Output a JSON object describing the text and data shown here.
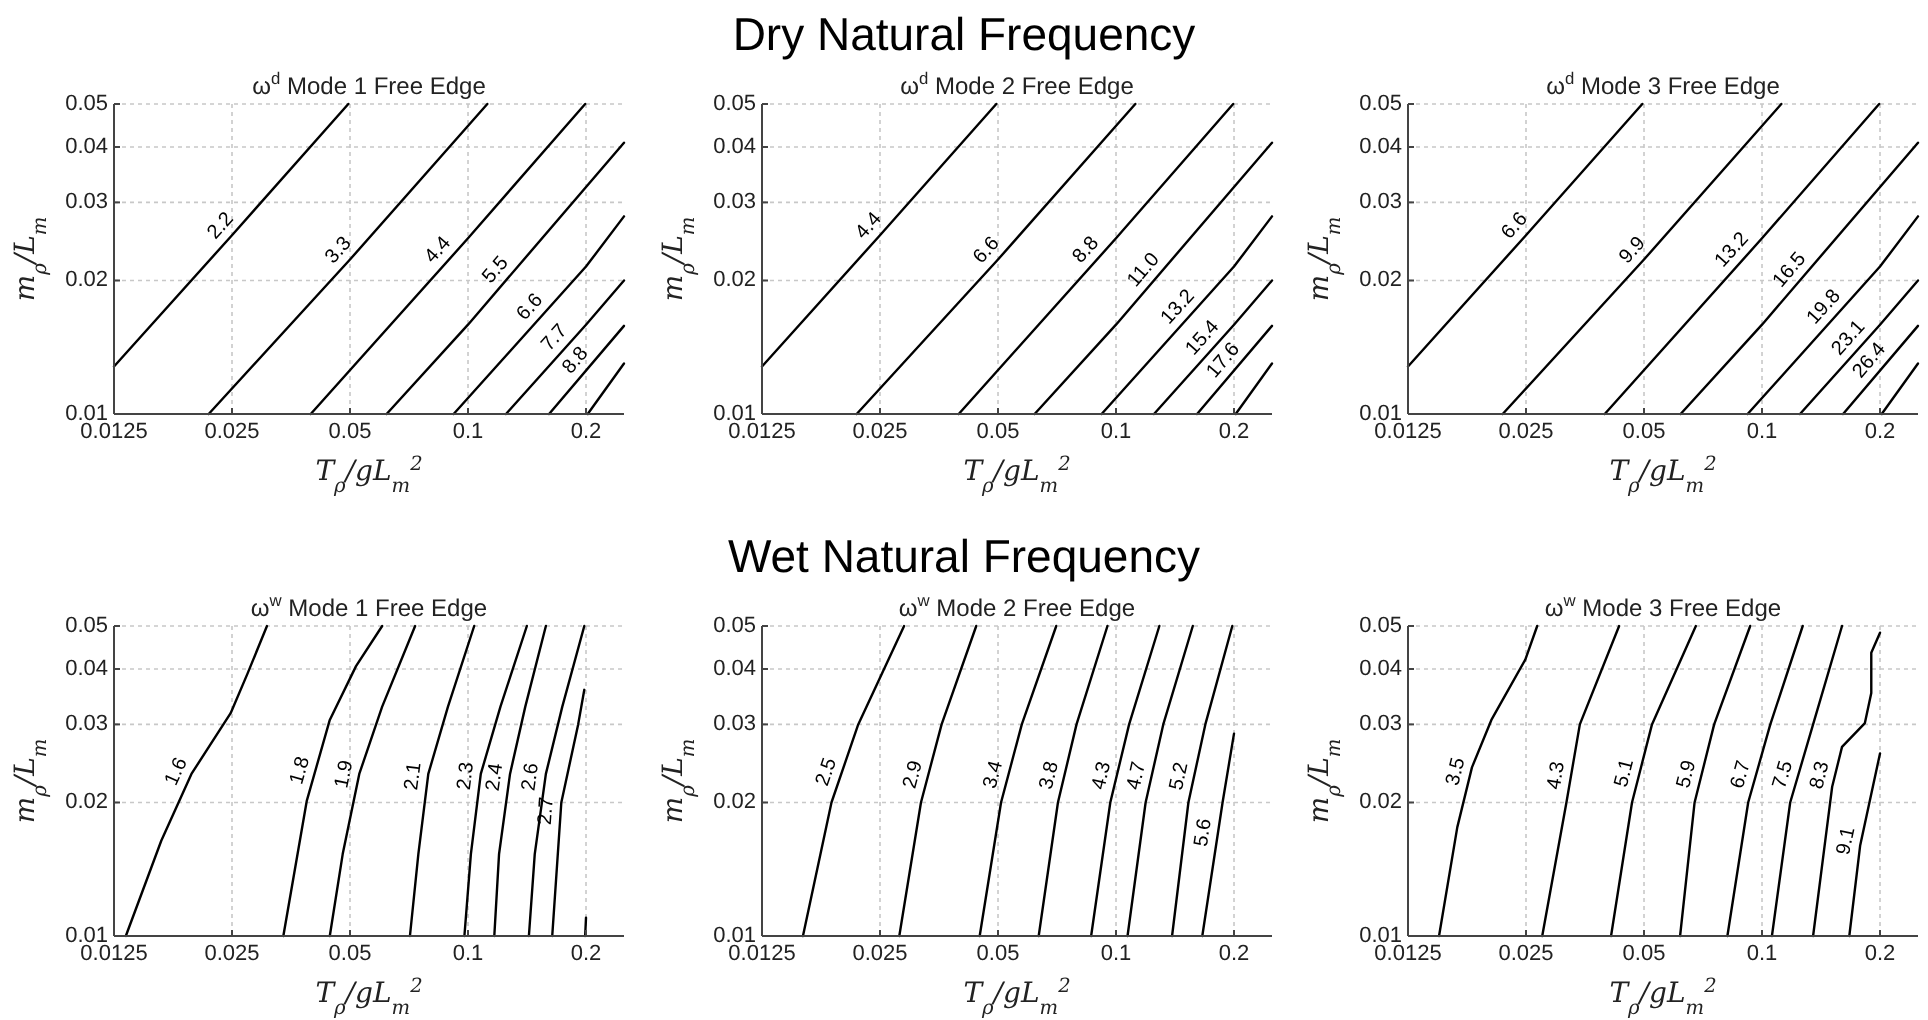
{
  "chart_data": [
    {
      "type": "line",
      "title": "ω$^{d}$ Mode 1 Free Edge",
      "annotations": [
        "Dry Natural Frequency"
      ],
      "xlabel": "T$_{ρ}$/gL$_{m}$$^{2}$",
      "ylabel": "m$_{ρ}$/L$_{m}$",
      "log": "xy",
      "grid": true,
      "xlim": [
        0.0125,
        0.25
      ],
      "ylim": [
        0.01,
        0.05
      ],
      "xticks": [
        0.0125,
        0.025,
        0.05,
        0.1,
        0.2
      ],
      "yticks": [
        0.01,
        0.02,
        0.03,
        0.04,
        0.05
      ],
      "series": [
        {
          "name": "2.2",
          "color": "#000000",
          "x": [
            0.0125,
            0.025,
            0.0495
          ],
          "values": [
            0.0128,
            0.0253,
            0.05
          ]
        },
        {
          "name": "3.3",
          "color": "#000000",
          "x": [
            0.0218,
            0.05,
            0.112
          ],
          "values": [
            0.01,
            0.0223,
            0.05
          ]
        },
        {
          "name": "4.4",
          "color": "#000000",
          "x": [
            0.0397,
            0.1,
            0.199
          ],
          "values": [
            0.01,
            0.0249,
            0.05
          ]
        },
        {
          "name": "5.5",
          "color": "#000000",
          "x": [
            0.062,
            0.1,
            0.25
          ],
          "values": [
            0.01,
            0.0159,
            0.0409
          ]
        },
        {
          "name": "6.6",
          "color": "#000000",
          "x": [
            0.0919,
            0.2,
            0.25
          ],
          "values": [
            0.01,
            0.0215,
            0.0279
          ]
        },
        {
          "name": "7.7",
          "color": "#000000",
          "x": [
            0.125,
            0.2,
            0.25
          ],
          "values": [
            0.01,
            0.0159,
            0.02
          ]
        },
        {
          "name": "8.8",
          "color": "#000000",
          "x": [
            0.161,
            0.25
          ],
          "values": [
            0.01,
            0.0158
          ]
        },
        {
          "color": "#000000",
          "x": [
            0.202,
            0.25
          ],
          "values": [
            0.01,
            0.013
          ]
        }
      ]
    },
    {
      "type": "line",
      "title": "ω$^{d}$ Mode 2 Free Edge",
      "xlabel": "T$_{ρ}$/gL$_{m}$$^{2}$",
      "ylabel": "m$_{ρ}$/L$_{m}$",
      "log": "xy",
      "grid": true,
      "xlim": [
        0.0125,
        0.25
      ],
      "ylim": [
        0.01,
        0.05
      ],
      "xticks": [
        0.0125,
        0.025,
        0.05,
        0.1,
        0.2
      ],
      "yticks": [
        0.01,
        0.02,
        0.03,
        0.04,
        0.05
      ],
      "series": [
        {
          "name": "4.4",
          "color": "#000000",
          "x": [
            0.0125,
            0.025,
            0.0495
          ],
          "values": [
            0.0128,
            0.0253,
            0.05
          ]
        },
        {
          "name": "6.6",
          "color": "#000000",
          "x": [
            0.0218,
            0.05,
            0.112
          ],
          "values": [
            0.01,
            0.0223,
            0.05
          ]
        },
        {
          "name": "8.8",
          "color": "#000000",
          "x": [
            0.0397,
            0.1,
            0.199
          ],
          "values": [
            0.01,
            0.0249,
            0.05
          ]
        },
        {
          "name": "11.0",
          "color": "#000000",
          "x": [
            0.062,
            0.1,
            0.25
          ],
          "values": [
            0.01,
            0.0159,
            0.0409
          ]
        },
        {
          "name": "13.2",
          "color": "#000000",
          "x": [
            0.0919,
            0.2,
            0.25
          ],
          "values": [
            0.01,
            0.0215,
            0.0279
          ]
        },
        {
          "name": "15.4",
          "color": "#000000",
          "x": [
            0.125,
            0.2,
            0.25
          ],
          "values": [
            0.01,
            0.0159,
            0.02
          ]
        },
        {
          "name": "17.6",
          "color": "#000000",
          "x": [
            0.161,
            0.25
          ],
          "values": [
            0.01,
            0.0158
          ]
        },
        {
          "color": "#000000",
          "x": [
            0.202,
            0.25
          ],
          "values": [
            0.01,
            0.013
          ]
        }
      ]
    },
    {
      "type": "line",
      "title": "ω$^{d}$ Mode 3 Free Edge",
      "xlabel": "T$_{ρ}$/gL$_{m}$$^{2}$",
      "ylabel": "m$_{ρ}$/L$_{m}$",
      "log": "xy",
      "grid": true,
      "xlim": [
        0.0125,
        0.25
      ],
      "ylim": [
        0.01,
        0.05
      ],
      "xticks": [
        0.0125,
        0.025,
        0.05,
        0.1,
        0.2
      ],
      "yticks": [
        0.01,
        0.02,
        0.03,
        0.04,
        0.05
      ],
      "series": [
        {
          "name": "6.6",
          "color": "#000000",
          "x": [
            0.0125,
            0.025,
            0.0495
          ],
          "values": [
            0.0128,
            0.0253,
            0.05
          ]
        },
        {
          "name": "9.9",
          "color": "#000000",
          "x": [
            0.0218,
            0.05,
            0.112
          ],
          "values": [
            0.01,
            0.0223,
            0.05
          ]
        },
        {
          "name": "13.2",
          "color": "#000000",
          "x": [
            0.0397,
            0.1,
            0.199
          ],
          "values": [
            0.01,
            0.0249,
            0.05
          ]
        },
        {
          "name": "16.5",
          "color": "#000000",
          "x": [
            0.062,
            0.1,
            0.25
          ],
          "values": [
            0.01,
            0.0159,
            0.0409
          ]
        },
        {
          "name": "19.8",
          "color": "#000000",
          "x": [
            0.0919,
            0.2,
            0.25
          ],
          "values": [
            0.01,
            0.0215,
            0.0279
          ]
        },
        {
          "name": "23.1",
          "color": "#000000",
          "x": [
            0.125,
            0.2,
            0.25
          ],
          "values": [
            0.01,
            0.0159,
            0.02
          ]
        },
        {
          "name": "26.4",
          "color": "#000000",
          "x": [
            0.161,
            0.25
          ],
          "values": [
            0.01,
            0.0158
          ]
        },
        {
          "color": "#000000",
          "x": [
            0.202,
            0.25
          ],
          "values": [
            0.01,
            0.013
          ]
        }
      ]
    },
    {
      "type": "line",
      "title": "ω$^{w}$ Mode 1 Free Edge",
      "annotations": [
        "Wet Natural Frequency"
      ],
      "xlabel": "T$_{ρ}$/gL$_{m}$$^{2}$",
      "ylabel": "m$_{ρ}$/L$_{m}$",
      "log": "xy",
      "grid": true,
      "xlim": [
        0.0125,
        0.25
      ],
      "ylim": [
        0.01,
        0.05
      ],
      "xticks": [
        0.0125,
        0.025,
        0.05,
        0.1,
        0.2
      ],
      "yticks": [
        0.01,
        0.02,
        0.03,
        0.04,
        0.05
      ],
      "series": [
        {
          "name": "1.6",
          "color": "#000000",
          "x": [
            0.0134,
            0.0165,
            0.0197,
            0.0248,
            0.0274,
            0.0307
          ],
          "values": [
            0.01,
            0.0164,
            0.0232,
            0.0318,
            0.0391,
            0.05
          ]
        },
        {
          "name": "1.8",
          "color": "#000000",
          "x": [
            0.0338,
            0.0388,
            0.0444,
            0.0518,
            0.0604
          ],
          "values": [
            0.01,
            0.0202,
            0.0307,
            0.0406,
            0.05
          ]
        },
        {
          "name": "1.9",
          "color": "#000000",
          "x": [
            0.0444,
            0.0479,
            0.0528,
            0.0604,
            0.0733
          ],
          "values": [
            0.01,
            0.0153,
            0.0232,
            0.0329,
            0.05
          ]
        },
        {
          "name": "2.1",
          "color": "#000000",
          "x": [
            0.0711,
            0.0747,
            0.0792,
            0.0889,
            0.1037
          ],
          "values": [
            0.01,
            0.0153,
            0.0232,
            0.0329,
            0.05
          ]
        },
        {
          "name": "2.3",
          "color": "#000000",
          "x": [
            0.0979,
            0.1017,
            0.1078,
            0.121,
            0.1413
          ],
          "values": [
            0.01,
            0.0153,
            0.0232,
            0.0329,
            0.05
          ]
        },
        {
          "name": "2.4",
          "color": "#000000",
          "x": [
            0.1167,
            0.12,
            0.128,
            0.14,
            0.158
          ],
          "values": [
            0.01,
            0.0153,
            0.0232,
            0.0329,
            0.05
          ]
        },
        {
          "name": "2.6",
          "color": "#000000",
          "x": [
            0.143,
            0.148,
            0.158,
            0.174,
            0.198
          ],
          "values": [
            0.01,
            0.0153,
            0.0232,
            0.0329,
            0.05
          ]
        },
        {
          "name": "2.7",
          "color": "#000000",
          "x": [
            0.164,
            0.173,
            0.191,
            0.198
          ],
          "values": [
            0.01,
            0.02,
            0.03,
            0.0359
          ]
        },
        {
          "color": "#000000",
          "x": [
            0.199,
            0.2
          ],
          "values": [
            0.01,
            0.011
          ]
        }
      ]
    },
    {
      "type": "line",
      "title": "ω$^{w}$ Mode 2 Free Edge",
      "xlabel": "T$_{ρ}$/gL$_{m}$$^{2}$",
      "ylabel": "m$_{ρ}$/L$_{m}$",
      "log": "xy",
      "grid": true,
      "xlim": [
        0.0125,
        0.25
      ],
      "ylim": [
        0.01,
        0.05
      ],
      "xticks": [
        0.0125,
        0.025,
        0.05,
        0.1,
        0.2
      ],
      "yticks": [
        0.01,
        0.02,
        0.03,
        0.04,
        0.05
      ],
      "series": [
        {
          "name": "2.5",
          "color": "#000000",
          "x": [
            0.0159,
            0.0188,
            0.022,
            0.0288
          ],
          "values": [
            0.01,
            0.02,
            0.03,
            0.05
          ]
        },
        {
          "name": "2.9",
          "color": "#000000",
          "x": [
            0.028,
            0.0318,
            0.0359,
            0.044
          ],
          "values": [
            0.01,
            0.02,
            0.03,
            0.05
          ]
        },
        {
          "name": "3.4",
          "color": "#000000",
          "x": [
            0.0449,
            0.0509,
            0.0575,
            0.0704
          ],
          "values": [
            0.01,
            0.02,
            0.03,
            0.05
          ]
        },
        {
          "name": "3.8",
          "color": "#000000",
          "x": [
            0.0635,
            0.0711,
            0.0793,
            0.0951
          ],
          "values": [
            0.01,
            0.02,
            0.03,
            0.05
          ]
        },
        {
          "name": "4.3",
          "color": "#000000",
          "x": [
            0.0864,
            0.0967,
            0.108,
            0.129
          ],
          "values": [
            0.01,
            0.02,
            0.03,
            0.05
          ]
        },
        {
          "name": "4.7",
          "color": "#000000",
          "x": [
            0.107,
            0.119,
            0.132,
            0.157
          ],
          "values": [
            0.01,
            0.02,
            0.03,
            0.05
          ]
        },
        {
          "name": "5.2",
          "color": "#000000",
          "x": [
            0.139,
            0.153,
            0.169,
            0.198
          ],
          "values": [
            0.01,
            0.02,
            0.03,
            0.05
          ]
        },
        {
          "name": "5.6",
          "color": "#000000",
          "x": [
            0.166,
            0.187,
            0.2
          ],
          "values": [
            0.01,
            0.02,
            0.0286
          ]
        }
      ]
    },
    {
      "type": "line",
      "title": "ω$^{w}$ Mode 3 Free Edge",
      "xlabel": "T$_{ρ}$/gL$_{m}$$^{2}$",
      "ylabel": "m$_{ρ}$/L$_{m}$",
      "log": "xy",
      "grid": true,
      "xlim": [
        0.0125,
        0.25
      ],
      "ylim": [
        0.01,
        0.05
      ],
      "xticks": [
        0.0125,
        0.025,
        0.05,
        0.1,
        0.2
      ],
      "yticks": [
        0.01,
        0.02,
        0.03,
        0.04,
        0.05
      ],
      "series": [
        {
          "name": "3.5",
          "color": "#000000",
          "x": [
            0.015,
            0.0167,
            0.0182,
            0.0204,
            0.0249,
            0.0267
          ],
          "values": [
            0.01,
            0.0176,
            0.024,
            0.0307,
            0.042,
            0.05
          ]
        },
        {
          "name": "4.3",
          "color": "#000000",
          "x": [
            0.0275,
            0.0317,
            0.0343,
            0.0432
          ],
          "values": [
            0.01,
            0.02,
            0.03,
            0.05
          ]
        },
        {
          "name": "5.1",
          "color": "#000000",
          "x": [
            0.0412,
            0.0466,
            0.0524,
            0.0678
          ],
          "values": [
            0.01,
            0.02,
            0.03,
            0.05
          ]
        },
        {
          "name": "5.9",
          "color": "#000000",
          "x": [
            0.0618,
            0.0673,
            0.0755,
            0.0933
          ],
          "values": [
            0.01,
            0.02,
            0.03,
            0.05
          ]
        },
        {
          "name": "6.7",
          "color": "#000000",
          "x": [
            0.0816,
            0.0922,
            0.105,
            0.127
          ],
          "values": [
            0.01,
            0.02,
            0.03,
            0.05
          ]
        },
        {
          "name": "7.5",
          "color": "#000000",
          "x": [
            0.106,
            0.118,
            0.135,
            0.16
          ],
          "values": [
            0.01,
            0.02,
            0.03,
            0.05
          ]
        },
        {
          "name": "8.3",
          "color": "#000000",
          "x": [
            0.135,
            0.145,
            0.151,
            0.16,
            0.183,
            0.19,
            0.19,
            0.2
          ],
          "values": [
            0.01,
            0.0164,
            0.0217,
            0.0267,
            0.0302,
            0.0353,
            0.0435,
            0.0483
          ]
        },
        {
          "name": "9.1",
          "color": "#000000",
          "x": [
            0.167,
            0.178,
            0.2
          ],
          "values": [
            0.01,
            0.016,
            0.0258
          ]
        }
      ]
    }
  ]
}
